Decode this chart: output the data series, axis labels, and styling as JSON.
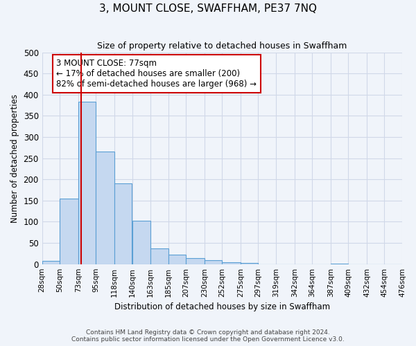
{
  "title": "3, MOUNT CLOSE, SWAFFHAM, PE37 7NQ",
  "subtitle": "Size of property relative to detached houses in Swaffham",
  "xlabel": "Distribution of detached houses by size in Swaffham",
  "ylabel": "Number of detached properties",
  "bar_color": "#c5d8f0",
  "bar_edge_color": "#5a9fd4",
  "grid_color": "#d0d8e8",
  "background_color": "#f0f4fa",
  "bin_edges": [
    28,
    50,
    73,
    95,
    118,
    140,
    163,
    185,
    207,
    230,
    252,
    275,
    297,
    319,
    342,
    364,
    387,
    409,
    432,
    454,
    476
  ],
  "bin_labels": [
    "28sqm",
    "50sqm",
    "73sqm",
    "95sqm",
    "118sqm",
    "140sqm",
    "163sqm",
    "185sqm",
    "207sqm",
    "230sqm",
    "252sqm",
    "275sqm",
    "297sqm",
    "319sqm",
    "342sqm",
    "364sqm",
    "387sqm",
    "409sqm",
    "432sqm",
    "454sqm",
    "476sqm"
  ],
  "bar_heights": [
    7,
    155,
    383,
    265,
    190,
    102,
    37,
    22,
    14,
    10,
    5,
    3,
    0,
    0,
    0,
    0,
    1,
    0,
    0,
    0
  ],
  "ylim": [
    0,
    500
  ],
  "yticks": [
    0,
    50,
    100,
    150,
    200,
    250,
    300,
    350,
    400,
    450,
    500
  ],
  "property_line_x": 77,
  "property_line_color": "#cc0000",
  "annotation_title": "3 MOUNT CLOSE: 77sqm",
  "annotation_line1": "← 17% of detached houses are smaller (200)",
  "annotation_line2": "82% of semi-detached houses are larger (968) →",
  "annotation_box_color": "#ffffff",
  "annotation_box_edge": "#cc0000",
  "footer_line1": "Contains HM Land Registry data © Crown copyright and database right 2024.",
  "footer_line2": "Contains public sector information licensed under the Open Government Licence v3.0."
}
